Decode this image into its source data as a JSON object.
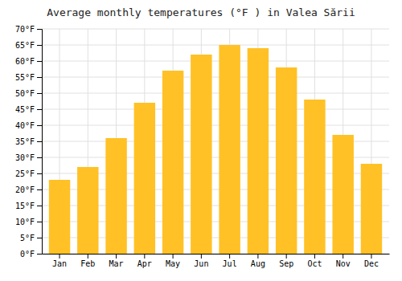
{
  "chart_data": {
    "type": "bar",
    "title": "Average monthly temperatures (°F ) in Valea Sării",
    "categories": [
      "Jan",
      "Feb",
      "Mar",
      "Apr",
      "May",
      "Jun",
      "Jul",
      "Aug",
      "Sep",
      "Oct",
      "Nov",
      "Dec"
    ],
    "values": [
      23,
      27,
      36,
      47,
      57,
      62,
      65,
      64,
      58,
      48,
      37,
      28
    ],
    "color": "#FFC125",
    "ylim": [
      0,
      70
    ],
    "yticks": [
      {
        "value": 0,
        "label": "0°F"
      },
      {
        "value": 5,
        "label": "5°F"
      },
      {
        "value": 10,
        "label": "10°F"
      },
      {
        "value": 15,
        "label": "15°F"
      },
      {
        "value": 20,
        "label": "20°F"
      },
      {
        "value": 25,
        "label": "25°F"
      },
      {
        "value": 30,
        "label": "30°F"
      },
      {
        "value": 35,
        "label": "35°F"
      },
      {
        "value": 40,
        "label": "40°F"
      },
      {
        "value": 45,
        "label": "45°F"
      },
      {
        "value": 50,
        "label": "50°F"
      },
      {
        "value": 55,
        "label": "55°F"
      },
      {
        "value": 60,
        "label": "60°F"
      },
      {
        "value": 65,
        "label": "65°F"
      },
      {
        "value": 70,
        "label": "70°F"
      }
    ],
    "grid": true
  }
}
